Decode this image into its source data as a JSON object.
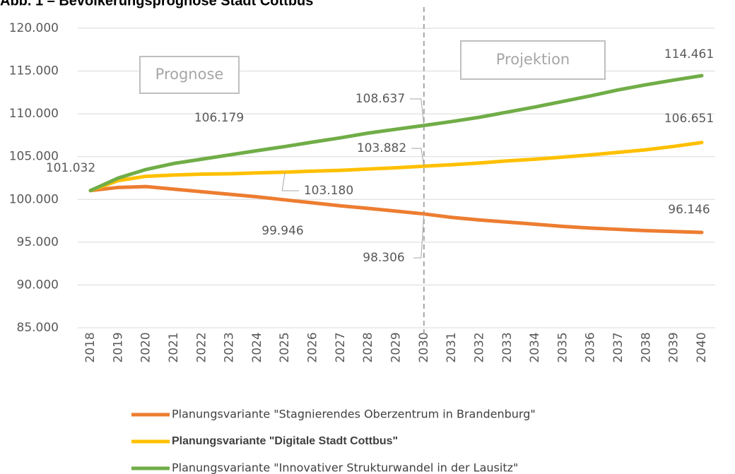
{
  "chart_data": {
    "type": "line",
    "title": "Abb. 1 – Bevölkerungsprognose Stadt Cottbus",
    "annotations": [
      "Prognose",
      "Projektion"
    ],
    "categories": [
      "2018",
      "2019",
      "2020",
      "2021",
      "2022",
      "2023",
      "2024",
      "2025",
      "2026",
      "2027",
      "2028",
      "2029",
      "2030",
      "2031",
      "2032",
      "2033",
      "2034",
      "2035",
      "2036",
      "2037",
      "2038",
      "2039",
      "2040"
    ],
    "series": [
      {
        "name": "Planungsvariante \"Stagnierendes Oberzentrum in Brandenburg\"",
        "color": "#ed7d31",
        "values": [
          101032,
          101400,
          101500,
          101200,
          100900,
          100600,
          100300,
          99946,
          99600,
          99250,
          98950,
          98630,
          98306,
          97900,
          97600,
          97350,
          97100,
          96850,
          96650,
          96500,
          96350,
          96250,
          96146
        ],
        "value_labels": [
          null,
          null,
          null,
          null,
          null,
          null,
          null,
          "99.946",
          null,
          null,
          null,
          null,
          "98.306",
          null,
          null,
          null,
          null,
          null,
          null,
          null,
          null,
          null,
          "96.146"
        ]
      },
      {
        "name": "Planungsvariante \"Digitale Stadt Cottbus\"",
        "color": "#ffc000",
        "values": [
          101032,
          102200,
          102700,
          102850,
          102950,
          103000,
          103100,
          103180,
          103300,
          103400,
          103550,
          103700,
          103882,
          104050,
          104250,
          104500,
          104700,
          104950,
          105200,
          105500,
          105800,
          106200,
          106651
        ],
        "value_labels": [
          null,
          null,
          null,
          null,
          null,
          null,
          null,
          "103.180",
          null,
          null,
          null,
          null,
          "103.882",
          null,
          null,
          null,
          null,
          null,
          null,
          null,
          null,
          null,
          "106.651"
        ]
      },
      {
        "name": "Planungsvariante \"Innovativer Strukturwandel in der Lausitz\"",
        "color": "#70ad47",
        "values": [
          101032,
          102500,
          103500,
          104200,
          104700,
          105200,
          105700,
          106179,
          106700,
          107200,
          107750,
          108200,
          108637,
          109100,
          109600,
          110200,
          110800,
          111450,
          112100,
          112800,
          113400,
          113950,
          114461
        ],
        "value_labels": [
          "101.032",
          null,
          null,
          null,
          null,
          null,
          null,
          "106.179",
          null,
          null,
          null,
          null,
          "108.637",
          null,
          null,
          null,
          null,
          null,
          null,
          null,
          null,
          null,
          "114.461"
        ]
      }
    ],
    "ylim": [
      85000,
      120000
    ],
    "yticks": [
      {
        "value": 85000,
        "label": "85.000"
      },
      {
        "value": 90000,
        "label": "90.000"
      },
      {
        "value": 95000,
        "label": "95.000"
      },
      {
        "value": 100000,
        "label": "100.000"
      },
      {
        "value": 105000,
        "label": "105.000"
      },
      {
        "value": 110000,
        "label": "110.000"
      },
      {
        "value": 115000,
        "label": "115.000"
      },
      {
        "value": 120000,
        "label": "120.000"
      }
    ],
    "grid": true
  }
}
